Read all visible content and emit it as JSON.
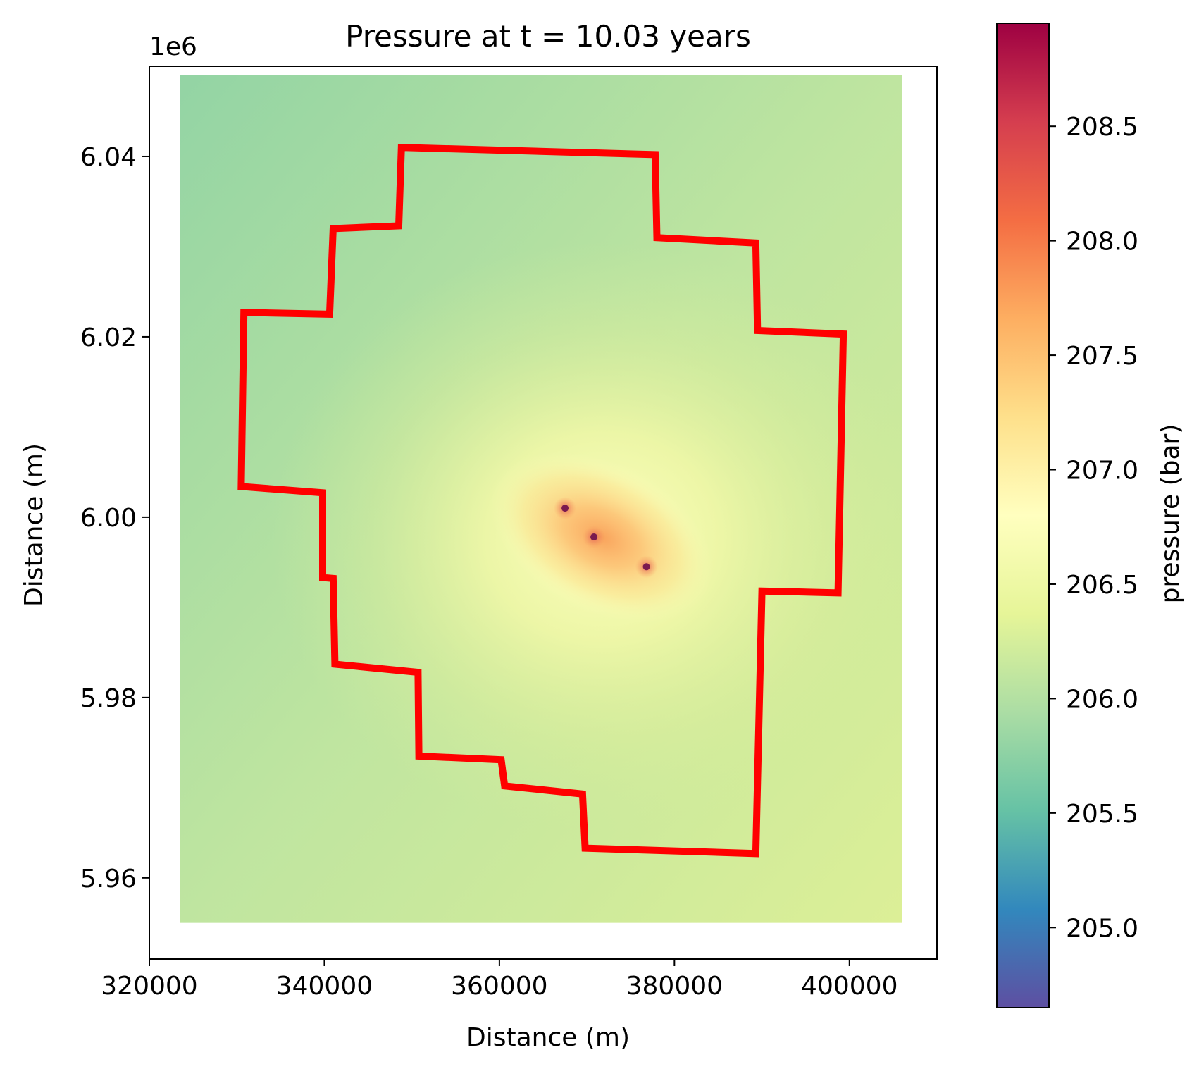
{
  "chart_data": {
    "type": "heatmap",
    "title": "Pressure at t = 10.03 years",
    "xlabel": "Distance (m)",
    "ylabel": "Distance (m)",
    "y_offset_label": "1e6",
    "xlim": [
      320000,
      410000
    ],
    "ylim": [
      5.951,
      6.05
    ],
    "x_ticks": [
      320000,
      340000,
      360000,
      380000,
      400000
    ],
    "x_tick_labels": [
      "320000",
      "340000",
      "360000",
      "380000",
      "400000"
    ],
    "y_ticks": [
      5.96,
      5.98,
      6.0,
      6.02,
      6.04
    ],
    "y_tick_labels": [
      "5.96",
      "5.98",
      "6.00",
      "6.02",
      "6.04"
    ],
    "grid": false,
    "colormap": "Spectral_r",
    "colorbar": {
      "label": "pressure (bar)",
      "range": [
        204.65,
        208.95
      ],
      "ticks": [
        205.0,
        205.5,
        206.0,
        206.5,
        207.0,
        207.5,
        208.0,
        208.5
      ],
      "tick_labels": [
        "205.0",
        "205.5",
        "206.0",
        "206.5",
        "207.0",
        "207.5",
        "208.0",
        "208.5"
      ]
    },
    "field_extent": {
      "x": [
        323500,
        406000
      ],
      "y": [
        5.955,
        6.049
      ]
    },
    "wells": [
      {
        "x": 367500,
        "y": 6.001
      },
      {
        "x": 370800,
        "y": 5.9978
      },
      {
        "x": 376800,
        "y": 5.9945
      }
    ],
    "boundary": {
      "color": "#ff0000",
      "points": [
        [
          348800,
          6.041
        ],
        [
          377800,
          6.0402
        ],
        [
          378000,
          6.031
        ],
        [
          389300,
          6.0304
        ],
        [
          389500,
          6.0207
        ],
        [
          399300,
          6.0203
        ],
        [
          398700,
          5.9916
        ],
        [
          390000,
          5.9918
        ],
        [
          389300,
          5.9627
        ],
        [
          369800,
          5.9633
        ],
        [
          369500,
          5.9693
        ],
        [
          360600,
          5.9702
        ],
        [
          360200,
          5.9731
        ],
        [
          350800,
          5.9735
        ],
        [
          350700,
          5.9828
        ],
        [
          341200,
          5.9837
        ],
        [
          341000,
          5.9932
        ],
        [
          339800,
          5.9933
        ],
        [
          339800,
          6.0027
        ],
        [
          330500,
          6.0034
        ],
        [
          330800,
          6.0227
        ],
        [
          340600,
          6.0225
        ],
        [
          341000,
          6.032
        ],
        [
          348500,
          6.0323
        ],
        [
          348800,
          6.041
        ]
      ]
    }
  }
}
